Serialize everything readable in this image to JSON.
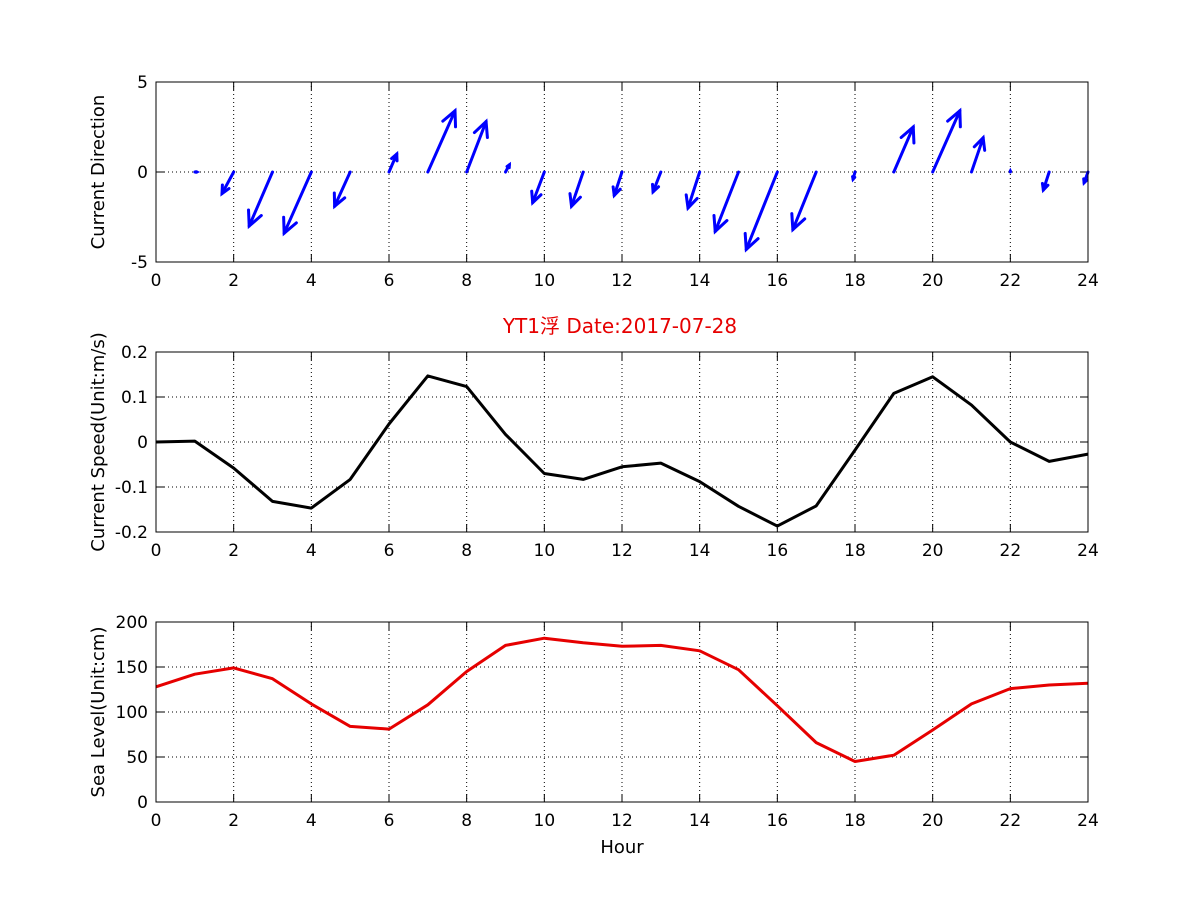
{
  "figure_title": "YT1浮   Date:2017-07-28",
  "title_color": "#e60000",
  "chart_data": [
    {
      "type": "quiver",
      "ylabel": "Current Direction",
      "xlabel": "",
      "xlim": [
        0,
        24
      ],
      "ylim": [
        -5,
        5
      ],
      "xticks": [
        0,
        2,
        4,
        6,
        8,
        10,
        12,
        14,
        16,
        18,
        20,
        22,
        24
      ],
      "yticks": [
        -5,
        0,
        5
      ],
      "grid": true,
      "color": "#0000ff",
      "vectors": [
        {
          "x": 0,
          "u": 0,
          "v": 0
        },
        {
          "x": 1,
          "u": 0.05,
          "v": 0.0
        },
        {
          "x": 2,
          "u": -0.3,
          "v": -1.2
        },
        {
          "x": 3,
          "u": -0.6,
          "v": -3.0
        },
        {
          "x": 4,
          "u": -0.7,
          "v": -3.4
        },
        {
          "x": 5,
          "u": -0.4,
          "v": -1.9
        },
        {
          "x": 6,
          "u": 0.2,
          "v": 1.0
        },
        {
          "x": 7,
          "u": 0.7,
          "v": 3.4
        },
        {
          "x": 8,
          "u": 0.5,
          "v": 2.8
        },
        {
          "x": 9,
          "u": 0.1,
          "v": 0.4
        },
        {
          "x": 10,
          "u": -0.3,
          "v": -1.7
        },
        {
          "x": 11,
          "u": -0.3,
          "v": -1.9
        },
        {
          "x": 12,
          "u": -0.2,
          "v": -1.3
        },
        {
          "x": 13,
          "u": -0.2,
          "v": -1.1
        },
        {
          "x": 14,
          "u": -0.3,
          "v": -2.0
        },
        {
          "x": 15,
          "u": -0.6,
          "v": -3.3
        },
        {
          "x": 16,
          "u": -0.8,
          "v": -4.3
        },
        {
          "x": 17,
          "u": -0.6,
          "v": -3.2
        },
        {
          "x": 18,
          "u": -0.05,
          "v": -0.4
        },
        {
          "x": 19,
          "u": 0.5,
          "v": 2.5
        },
        {
          "x": 20,
          "u": 0.7,
          "v": 3.4
        },
        {
          "x": 21,
          "u": 0.3,
          "v": 1.9
        },
        {
          "x": 22,
          "u": 0.0,
          "v": 0.05
        },
        {
          "x": 23,
          "u": -0.15,
          "v": -1.0
        },
        {
          "x": 24,
          "u": -0.1,
          "v": -0.6
        }
      ]
    },
    {
      "type": "line",
      "ylabel": "Current Speed(Unit:m/s)",
      "xlabel": "",
      "xlim": [
        0,
        24
      ],
      "ylim": [
        -0.2,
        0.2
      ],
      "xticks": [
        0,
        2,
        4,
        6,
        8,
        10,
        12,
        14,
        16,
        18,
        20,
        22,
        24
      ],
      "yticks": [
        -0.2,
        -0.1,
        0,
        0.1,
        0.2
      ],
      "grid": true,
      "color": "#000000",
      "x": [
        0,
        1,
        2,
        3,
        4,
        5,
        6,
        7,
        8,
        9,
        10,
        11,
        12,
        13,
        14,
        15,
        16,
        17,
        18,
        19,
        20,
        21,
        22,
        23,
        24
      ],
      "y": [
        0.0,
        0.002,
        -0.058,
        -0.132,
        -0.147,
        -0.083,
        0.04,
        0.147,
        0.123,
        0.017,
        -0.07,
        -0.083,
        -0.055,
        -0.047,
        -0.088,
        -0.143,
        -0.187,
        -0.142,
        -0.018,
        0.108,
        0.145,
        0.082,
        0.0,
        -0.043,
        -0.027
      ]
    },
    {
      "type": "line",
      "ylabel": "Sea Level(Unit:cm)",
      "xlabel": "Hour",
      "xlim": [
        0,
        24
      ],
      "ylim": [
        0,
        200
      ],
      "xticks": [
        0,
        2,
        4,
        6,
        8,
        10,
        12,
        14,
        16,
        18,
        20,
        22,
        24
      ],
      "yticks": [
        0,
        50,
        100,
        150,
        200
      ],
      "grid": true,
      "color": "#e60000",
      "x": [
        0,
        1,
        2,
        3,
        4,
        5,
        6,
        7,
        8,
        9,
        10,
        11,
        12,
        13,
        14,
        15,
        16,
        17,
        18,
        19,
        20,
        21,
        22,
        23,
        24
      ],
      "y": [
        128,
        142,
        149,
        137,
        109,
        84,
        81,
        108,
        145,
        174,
        182,
        177,
        173,
        174,
        168,
        147,
        107,
        66,
        45,
        52,
        80,
        109,
        126,
        130,
        132
      ]
    }
  ]
}
